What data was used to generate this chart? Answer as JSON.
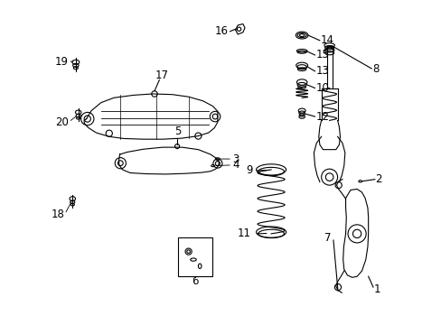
{
  "bg_color": "#ffffff",
  "line_color": "#000000",
  "fig_width": 4.89,
  "fig_height": 3.6,
  "dpi": 100,
  "font_size": 8.5
}
